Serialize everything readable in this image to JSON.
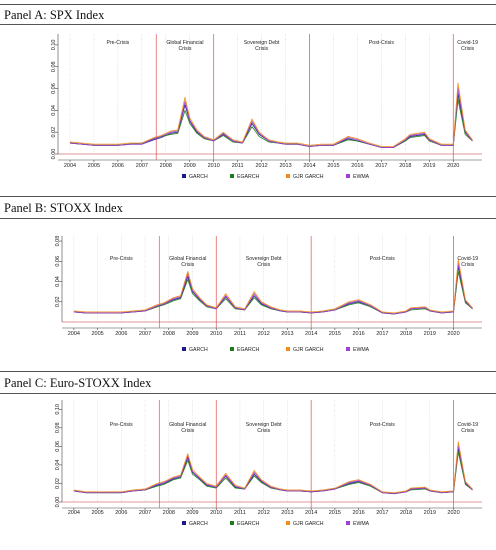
{
  "panels": [
    {
      "title": "Panel A: SPX Index"
    },
    {
      "title": "Panel B: STOXX Index"
    },
    {
      "title": "Panel C: Euro-STOXX Index"
    }
  ],
  "periods": [
    {
      "label": "Pre-Crisis"
    },
    {
      "label": "Global Financial\nCrisis"
    },
    {
      "label": "Sovereign Debt\nCrisis"
    },
    {
      "label": "Post-Crisis"
    },
    {
      "label": "Covid-19\nCrisis"
    }
  ],
  "legend": [
    {
      "name": "GARCH",
      "color": "#1a1a8c"
    },
    {
      "name": "EGARCH",
      "color": "#1e7a1e"
    },
    {
      "name": "GJR GARCH",
      "color": "#f08a1a"
    },
    {
      "name": "EWMA",
      "color": "#a43cd6"
    }
  ],
  "colors": {
    "break_line": "#e05050",
    "grid": "#c8c8c8",
    "axis": "#444444",
    "baseline": "#c03030"
  },
  "chart_data": [
    {
      "type": "line",
      "title": "Panel A: SPX Index",
      "xlim": [
        2003.5,
        2021.2
      ],
      "ylim": [
        0,
        0.11
      ],
      "yticks": [
        "0.00",
        "0.02",
        "0.04",
        "0.06",
        "0.08",
        "0.10"
      ],
      "xticks": [
        "2004",
        "2005",
        "2006",
        "2007",
        "2008",
        "2009",
        "2010",
        "2011",
        "2012",
        "2013",
        "2014",
        "2015",
        "2016",
        "2017",
        "2018",
        "2019",
        "2020"
      ],
      "breaks": [
        2007.6,
        2010.0,
        2014.0,
        2020.0
      ],
      "x": [
        2004.0,
        2004.5,
        2005.0,
        2005.5,
        2006.0,
        2006.5,
        2007.0,
        2007.5,
        2007.8,
        2008.2,
        2008.5,
        2008.8,
        2009.0,
        2009.3,
        2009.6,
        2010.0,
        2010.4,
        2010.8,
        2011.2,
        2011.6,
        2011.9,
        2012.3,
        2012.7,
        2013.0,
        2013.5,
        2014.0,
        2014.5,
        2015.0,
        2015.6,
        2016.0,
        2016.5,
        2017.0,
        2017.5,
        2018.0,
        2018.2,
        2018.8,
        2019.0,
        2019.5,
        2020.0,
        2020.2,
        2020.5,
        2020.8
      ],
      "series": [
        {
          "name": "GARCH",
          "values": [
            0.01,
            0.009,
            0.008,
            0.008,
            0.008,
            0.009,
            0.009,
            0.013,
            0.015,
            0.019,
            0.02,
            0.045,
            0.03,
            0.02,
            0.015,
            0.012,
            0.018,
            0.012,
            0.01,
            0.028,
            0.018,
            0.012,
            0.01,
            0.009,
            0.009,
            0.007,
            0.008,
            0.008,
            0.014,
            0.012,
            0.009,
            0.006,
            0.006,
            0.012,
            0.016,
            0.018,
            0.013,
            0.008,
            0.008,
            0.055,
            0.02,
            0.012
          ]
        },
        {
          "name": "EGARCH",
          "values": [
            0.01,
            0.009,
            0.008,
            0.008,
            0.008,
            0.009,
            0.01,
            0.014,
            0.016,
            0.018,
            0.019,
            0.04,
            0.028,
            0.019,
            0.014,
            0.012,
            0.017,
            0.011,
            0.01,
            0.025,
            0.016,
            0.011,
            0.01,
            0.009,
            0.009,
            0.007,
            0.008,
            0.008,
            0.013,
            0.012,
            0.009,
            0.006,
            0.006,
            0.012,
            0.015,
            0.017,
            0.012,
            0.008,
            0.008,
            0.05,
            0.018,
            0.012
          ]
        },
        {
          "name": "GJR GARCH",
          "values": [
            0.011,
            0.01,
            0.009,
            0.009,
            0.009,
            0.01,
            0.01,
            0.015,
            0.017,
            0.021,
            0.022,
            0.052,
            0.033,
            0.022,
            0.016,
            0.013,
            0.02,
            0.013,
            0.011,
            0.032,
            0.02,
            0.013,
            0.011,
            0.01,
            0.01,
            0.008,
            0.009,
            0.009,
            0.016,
            0.014,
            0.01,
            0.007,
            0.007,
            0.014,
            0.018,
            0.02,
            0.014,
            0.009,
            0.009,
            0.065,
            0.022,
            0.013
          ]
        },
        {
          "name": "EWMA",
          "values": [
            0.01,
            0.009,
            0.008,
            0.008,
            0.008,
            0.009,
            0.009,
            0.014,
            0.016,
            0.02,
            0.021,
            0.048,
            0.031,
            0.021,
            0.015,
            0.012,
            0.019,
            0.012,
            0.01,
            0.03,
            0.019,
            0.012,
            0.01,
            0.009,
            0.009,
            0.007,
            0.008,
            0.008,
            0.015,
            0.013,
            0.009,
            0.006,
            0.006,
            0.013,
            0.017,
            0.019,
            0.013,
            0.008,
            0.008,
            0.06,
            0.021,
            0.012
          ]
        }
      ]
    },
    {
      "type": "line",
      "title": "Panel B: STOXX Index",
      "xlim": [
        2003.5,
        2021.2
      ],
      "ylim": [
        0,
        0.085
      ],
      "yticks": [
        "0.02",
        "0.04",
        "0.06",
        "0.08"
      ],
      "xticks": [
        "2004",
        "2005",
        "2006",
        "2007",
        "2008",
        "2009",
        "2010",
        "2011",
        "2012",
        "2013",
        "2014",
        "2015",
        "2016",
        "2017",
        "2018",
        "2019",
        "2020"
      ],
      "breaks": [
        2007.6,
        2010.0,
        2014.0,
        2020.0
      ],
      "x": [
        2004.0,
        2004.5,
        2005.0,
        2005.5,
        2006.0,
        2006.5,
        2007.0,
        2007.5,
        2007.8,
        2008.2,
        2008.5,
        2008.8,
        2009.0,
        2009.3,
        2009.6,
        2010.0,
        2010.4,
        2010.8,
        2011.2,
        2011.6,
        2011.9,
        2012.3,
        2012.7,
        2013.0,
        2013.5,
        2014.0,
        2014.5,
        2015.0,
        2015.6,
        2016.0,
        2016.5,
        2017.0,
        2017.5,
        2018.0,
        2018.2,
        2018.8,
        2019.0,
        2019.5,
        2020.0,
        2020.2,
        2020.5,
        2020.8
      ],
      "series": [
        {
          "name": "GARCH",
          "values": [
            0.01,
            0.009,
            0.009,
            0.009,
            0.009,
            0.01,
            0.011,
            0.015,
            0.018,
            0.022,
            0.024,
            0.045,
            0.03,
            0.022,
            0.016,
            0.013,
            0.025,
            0.014,
            0.012,
            0.026,
            0.018,
            0.014,
            0.011,
            0.01,
            0.01,
            0.009,
            0.01,
            0.012,
            0.018,
            0.02,
            0.016,
            0.009,
            0.008,
            0.01,
            0.013,
            0.014,
            0.011,
            0.009,
            0.01,
            0.055,
            0.02,
            0.013
          ]
        },
        {
          "name": "EGARCH",
          "values": [
            0.01,
            0.009,
            0.009,
            0.009,
            0.009,
            0.01,
            0.011,
            0.015,
            0.017,
            0.021,
            0.023,
            0.042,
            0.028,
            0.021,
            0.015,
            0.013,
            0.023,
            0.013,
            0.012,
            0.024,
            0.017,
            0.013,
            0.011,
            0.01,
            0.01,
            0.009,
            0.01,
            0.012,
            0.017,
            0.019,
            0.015,
            0.009,
            0.008,
            0.01,
            0.012,
            0.013,
            0.011,
            0.009,
            0.01,
            0.05,
            0.019,
            0.013
          ]
        },
        {
          "name": "GJR GARCH",
          "values": [
            0.011,
            0.01,
            0.01,
            0.01,
            0.01,
            0.011,
            0.012,
            0.017,
            0.019,
            0.024,
            0.026,
            0.05,
            0.033,
            0.024,
            0.017,
            0.014,
            0.028,
            0.015,
            0.013,
            0.03,
            0.02,
            0.015,
            0.012,
            0.011,
            0.011,
            0.01,
            0.011,
            0.013,
            0.02,
            0.022,
            0.017,
            0.01,
            0.009,
            0.011,
            0.014,
            0.015,
            0.012,
            0.01,
            0.011,
            0.062,
            0.022,
            0.014
          ]
        },
        {
          "name": "EWMA",
          "values": [
            0.01,
            0.009,
            0.009,
            0.009,
            0.009,
            0.01,
            0.011,
            0.016,
            0.018,
            0.023,
            0.025,
            0.048,
            0.031,
            0.023,
            0.016,
            0.013,
            0.026,
            0.014,
            0.012,
            0.028,
            0.019,
            0.014,
            0.011,
            0.01,
            0.01,
            0.009,
            0.01,
            0.012,
            0.019,
            0.021,
            0.016,
            0.009,
            0.008,
            0.01,
            0.013,
            0.014,
            0.011,
            0.009,
            0.01,
            0.058,
            0.021,
            0.013
          ]
        }
      ]
    },
    {
      "type": "line",
      "title": "Panel C: Euro-STOXX Index",
      "xlim": [
        2003.5,
        2021.2
      ],
      "ylim": [
        0,
        0.11
      ],
      "yticks": [
        "0.00",
        "0.02",
        "0.04",
        "0.06",
        "0.08",
        "0.10"
      ],
      "xticks": [
        "2004",
        "2005",
        "2006",
        "2007",
        "2008",
        "2009",
        "2010",
        "2011",
        "2012",
        "2013",
        "2014",
        "2015",
        "2016",
        "2017",
        "2018",
        "2019",
        "2020"
      ],
      "breaks": [
        2007.6,
        2010.0,
        2014.0,
        2020.0
      ],
      "x": [
        2004.0,
        2004.5,
        2005.0,
        2005.5,
        2006.0,
        2006.5,
        2007.0,
        2007.5,
        2007.8,
        2008.2,
        2008.5,
        2008.8,
        2009.0,
        2009.3,
        2009.6,
        2010.0,
        2010.4,
        2010.8,
        2011.2,
        2011.6,
        2011.9,
        2012.3,
        2012.7,
        2013.0,
        2013.5,
        2014.0,
        2014.5,
        2015.0,
        2015.6,
        2016.0,
        2016.5,
        2017.0,
        2017.5,
        2018.0,
        2018.2,
        2018.8,
        2019.0,
        2019.5,
        2020.0,
        2020.2,
        2020.5,
        2020.8
      ],
      "series": [
        {
          "name": "GARCH",
          "values": [
            0.012,
            0.01,
            0.01,
            0.01,
            0.01,
            0.012,
            0.013,
            0.018,
            0.02,
            0.025,
            0.027,
            0.048,
            0.032,
            0.025,
            0.018,
            0.016,
            0.028,
            0.016,
            0.014,
            0.03,
            0.022,
            0.016,
            0.013,
            0.012,
            0.012,
            0.011,
            0.012,
            0.014,
            0.02,
            0.022,
            0.018,
            0.01,
            0.009,
            0.011,
            0.014,
            0.015,
            0.012,
            0.01,
            0.011,
            0.058,
            0.02,
            0.013
          ]
        },
        {
          "name": "EGARCH",
          "values": [
            0.012,
            0.01,
            0.01,
            0.01,
            0.01,
            0.012,
            0.013,
            0.017,
            0.019,
            0.024,
            0.026,
            0.045,
            0.03,
            0.024,
            0.017,
            0.015,
            0.026,
            0.015,
            0.014,
            0.028,
            0.021,
            0.015,
            0.013,
            0.012,
            0.012,
            0.011,
            0.012,
            0.014,
            0.019,
            0.021,
            0.017,
            0.01,
            0.009,
            0.011,
            0.013,
            0.014,
            0.012,
            0.01,
            0.011,
            0.054,
            0.019,
            0.013
          ]
        },
        {
          "name": "GJR GARCH",
          "values": [
            0.013,
            0.011,
            0.011,
            0.011,
            0.011,
            0.013,
            0.014,
            0.02,
            0.022,
            0.027,
            0.029,
            0.052,
            0.035,
            0.027,
            0.02,
            0.017,
            0.031,
            0.018,
            0.015,
            0.034,
            0.024,
            0.017,
            0.014,
            0.013,
            0.013,
            0.012,
            0.013,
            0.015,
            0.022,
            0.024,
            0.019,
            0.011,
            0.01,
            0.012,
            0.015,
            0.016,
            0.013,
            0.011,
            0.012,
            0.065,
            0.022,
            0.014
          ]
        },
        {
          "name": "EWMA",
          "values": [
            0.012,
            0.01,
            0.01,
            0.01,
            0.01,
            0.012,
            0.013,
            0.019,
            0.021,
            0.026,
            0.028,
            0.05,
            0.033,
            0.026,
            0.019,
            0.016,
            0.029,
            0.017,
            0.014,
            0.032,
            0.023,
            0.016,
            0.013,
            0.012,
            0.012,
            0.011,
            0.012,
            0.014,
            0.021,
            0.023,
            0.018,
            0.01,
            0.009,
            0.011,
            0.014,
            0.015,
            0.012,
            0.01,
            0.011,
            0.061,
            0.021,
            0.013
          ]
        }
      ]
    }
  ]
}
